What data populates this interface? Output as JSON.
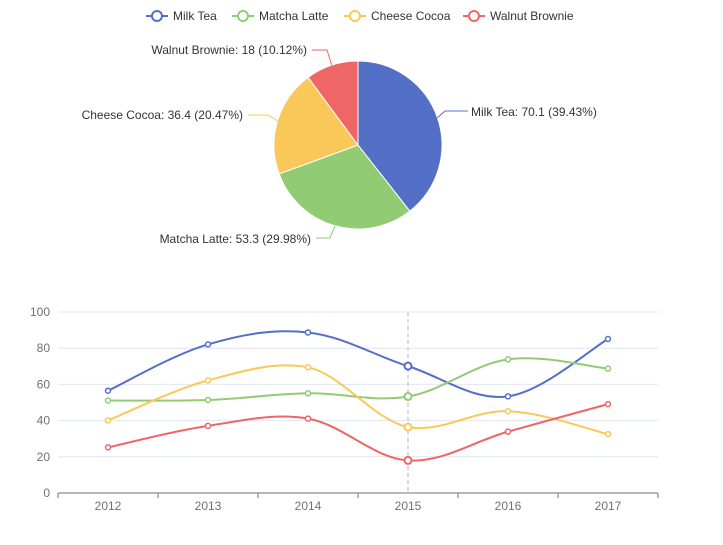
{
  "chart_data": [
    {
      "type": "pie",
      "slices": [
        {
          "name": "Milk Tea",
          "value": 70.1,
          "label": "Milk Tea: 70.1 (39.43%)",
          "color": "#5470c6"
        },
        {
          "name": "Matcha Latte",
          "value": 53.3,
          "label": "Matcha Latte: 53.3 (29.98%)",
          "color": "#91cc75"
        },
        {
          "name": "Cheese Cocoa",
          "value": 36.4,
          "label": "Cheese Cocoa: 36.4 (20.47%)",
          "color": "#fac858"
        },
        {
          "name": "Walnut Brownie",
          "value": 18,
          "label": "Walnut Brownie: 18 (10.12%)",
          "color": "#ee6666"
        }
      ],
      "legend": {
        "position": "top-center"
      }
    },
    {
      "type": "line",
      "x": [
        "2012",
        "2013",
        "2014",
        "2015",
        "2016",
        "2017"
      ],
      "series": [
        {
          "name": "Milk Tea",
          "color": "#5470c6",
          "values": [
            56.5,
            82.1,
            88.7,
            70.1,
            53.4,
            85.1
          ]
        },
        {
          "name": "Matcha Latte",
          "color": "#91cc75",
          "values": [
            51.1,
            51.4,
            55.1,
            53.3,
            73.8,
            68.7
          ]
        },
        {
          "name": "Cheese Cocoa",
          "color": "#fac858",
          "values": [
            40.1,
            62.2,
            69.5,
            36.4,
            45.2,
            32.5
          ]
        },
        {
          "name": "Walnut Brownie",
          "color": "#ee6666",
          "values": [
            25.2,
            37.1,
            41.1,
            18,
            33.9,
            49.1
          ]
        }
      ],
      "highlight_x": "2015",
      "ylim": [
        0,
        100
      ],
      "yticks": [
        0,
        20,
        40,
        60,
        80,
        100
      ],
      "grid": true
    }
  ]
}
